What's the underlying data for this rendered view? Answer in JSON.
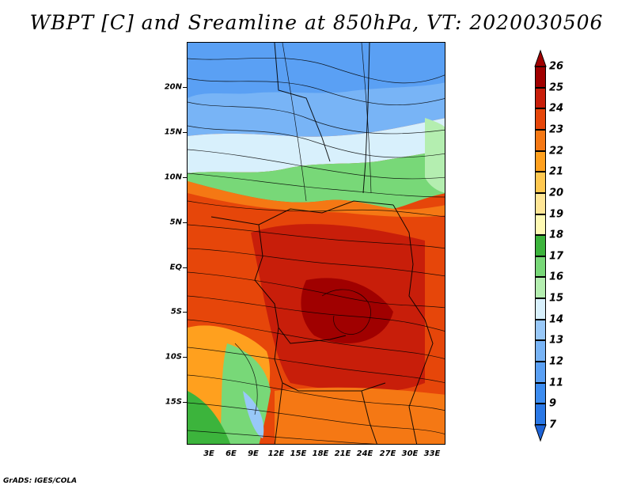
{
  "title": "WBPT [C] and Sreamline at 850hPa, VT: 2020030506",
  "footer": "GrADS: IGES/COLA",
  "map": {
    "variable": "WBPT",
    "units": "C",
    "level": "850hPa",
    "valid_time": "2020030506",
    "lat_ticks": [
      "20N",
      "15N",
      "10N",
      "5N",
      "EQ",
      "5S",
      "10S",
      "15S"
    ],
    "lon_ticks": [
      "3E",
      "6E",
      "9E",
      "12E",
      "15E",
      "18E",
      "21E",
      "24E",
      "27E",
      "30E",
      "33E"
    ]
  },
  "colorbar": {
    "levels": [
      "7",
      "9",
      "11",
      "12",
      "13",
      "14",
      "15",
      "16",
      "17",
      "18",
      "19",
      "20",
      "21",
      "22",
      "23",
      "24",
      "25",
      "26"
    ],
    "colors": [
      "#1e64d8",
      "#2a78e6",
      "#3c8cf0",
      "#5aa0f4",
      "#78b4f6",
      "#98c8f8",
      "#d8f0fc",
      "#b4eeb0",
      "#78d878",
      "#3cb43c",
      "#fffab4",
      "#ffe696",
      "#ffc850",
      "#ffa01e",
      "#f57814",
      "#e6460a",
      "#c81e0a",
      "#a00000"
    ]
  }
}
